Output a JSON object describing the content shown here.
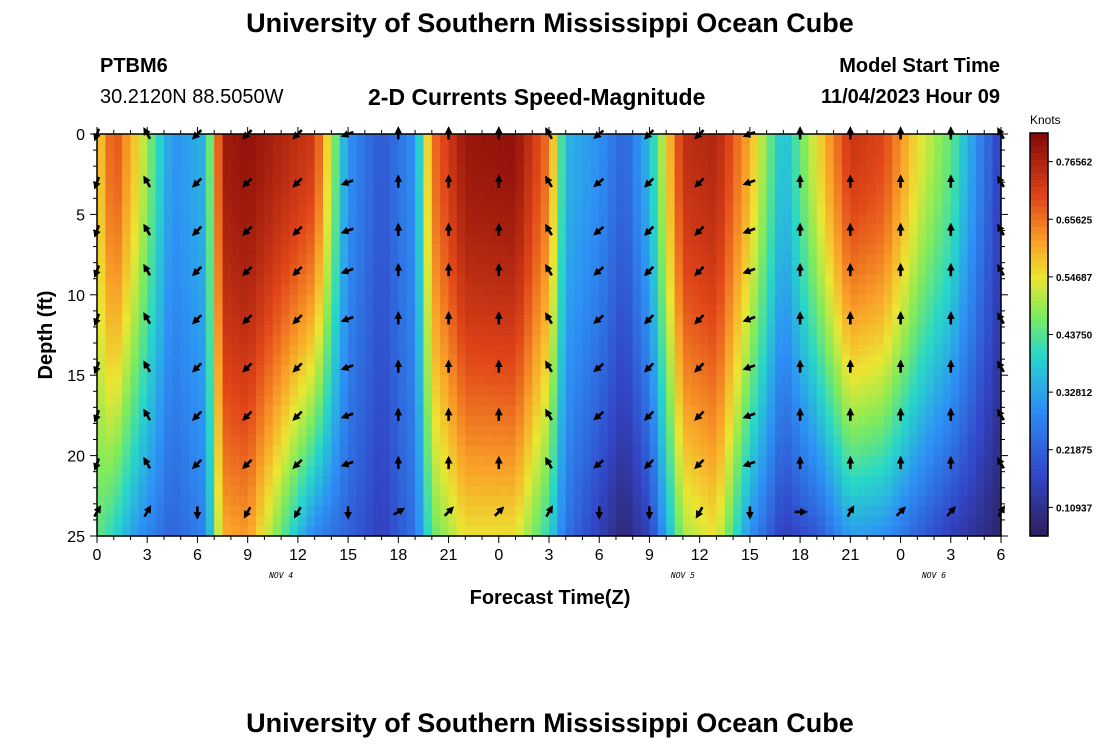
{
  "header": {
    "title": "University of Southern Mississippi Ocean Cube",
    "station_id": "PTBM6",
    "coordinates": "30.2120N  88.5050W",
    "plot_title": "2-D Currents Speed-Magnitude",
    "model_start_label": "Model Start Time",
    "model_start_value": "11/04/2023 Hour 09"
  },
  "footer": {
    "title": "University of Southern Mississippi Ocean Cube"
  },
  "chart_data": {
    "type": "heatmap",
    "title": "2-D Currents Speed-Magnitude",
    "xlabel": "Forecast Time(Z)",
    "ylabel": "Depth (ft)",
    "x_ticks": [
      "0",
      "3",
      "6",
      "9",
      "12",
      "15",
      "18",
      "21",
      "0",
      "3",
      "6",
      "9",
      "12",
      "15",
      "18",
      "21",
      "0",
      "3",
      "6"
    ],
    "date_labels": [
      {
        "label": "NOV 4",
        "at_hour": 11
      },
      {
        "label": "NOV 5",
        "at_hour": 35
      },
      {
        "label": "NOV 6",
        "at_hour": 50
      }
    ],
    "y_ticks": [
      0,
      5,
      10,
      15,
      20,
      25
    ],
    "xlim": [
      0,
      54
    ],
    "ylim": [
      0,
      25
    ],
    "colorbar": {
      "units": "Knots",
      "min": 0.055,
      "max": 0.82,
      "ticks": [
        "0.76562",
        "0.65625",
        "0.54687",
        "0.43750",
        "0.32812",
        "0.21875",
        "0.10937"
      ],
      "tick_values": [
        0.76562,
        0.65625,
        0.54687,
        0.4375,
        0.32812,
        0.21875,
        0.10937
      ]
    },
    "speed_profile": {
      "hours": [
        0,
        1,
        2.5,
        4.5,
        6.5,
        7.5,
        9,
        11,
        13,
        15,
        17,
        19,
        20,
        22,
        25,
        27,
        28,
        30,
        31.5,
        33,
        35,
        37,
        39,
        41,
        43,
        45,
        47,
        49,
        51,
        53,
        54
      ],
      "surface": [
        0.55,
        0.7,
        0.55,
        0.3,
        0.35,
        0.78,
        0.8,
        0.76,
        0.72,
        0.3,
        0.2,
        0.3,
        0.65,
        0.79,
        0.8,
        0.65,
        0.35,
        0.3,
        0.22,
        0.36,
        0.74,
        0.76,
        0.6,
        0.35,
        0.55,
        0.73,
        0.7,
        0.55,
        0.45,
        0.25,
        0.15
      ],
      "bottom": [
        0.45,
        0.4,
        0.3,
        0.22,
        0.28,
        0.6,
        0.62,
        0.45,
        0.28,
        0.22,
        0.15,
        0.25,
        0.45,
        0.55,
        0.55,
        0.4,
        0.25,
        0.15,
        0.08,
        0.16,
        0.5,
        0.55,
        0.3,
        0.15,
        0.2,
        0.32,
        0.3,
        0.22,
        0.15,
        0.1,
        0.07
      ]
    },
    "arrows": {
      "hours": [
        0,
        3,
        6,
        9,
        12,
        15,
        18,
        21,
        24,
        27,
        30,
        33,
        36,
        39,
        42,
        45,
        48,
        51,
        54
      ],
      "depths": [
        0,
        3,
        6,
        8.5,
        11.5,
        14.5,
        17.5,
        20.5,
        23.5
      ],
      "directions_deg": [
        200,
        330,
        225,
        225,
        225,
        250,
        0,
        0,
        0,
        330,
        230,
        225,
        225,
        250,
        0,
        0,
        0,
        0,
        330
      ],
      "bottom_directions_deg": [
        30,
        30,
        180,
        210,
        210,
        180,
        60,
        45,
        45,
        30,
        180,
        180,
        210,
        180,
        90,
        30,
        45,
        40,
        30
      ]
    }
  }
}
